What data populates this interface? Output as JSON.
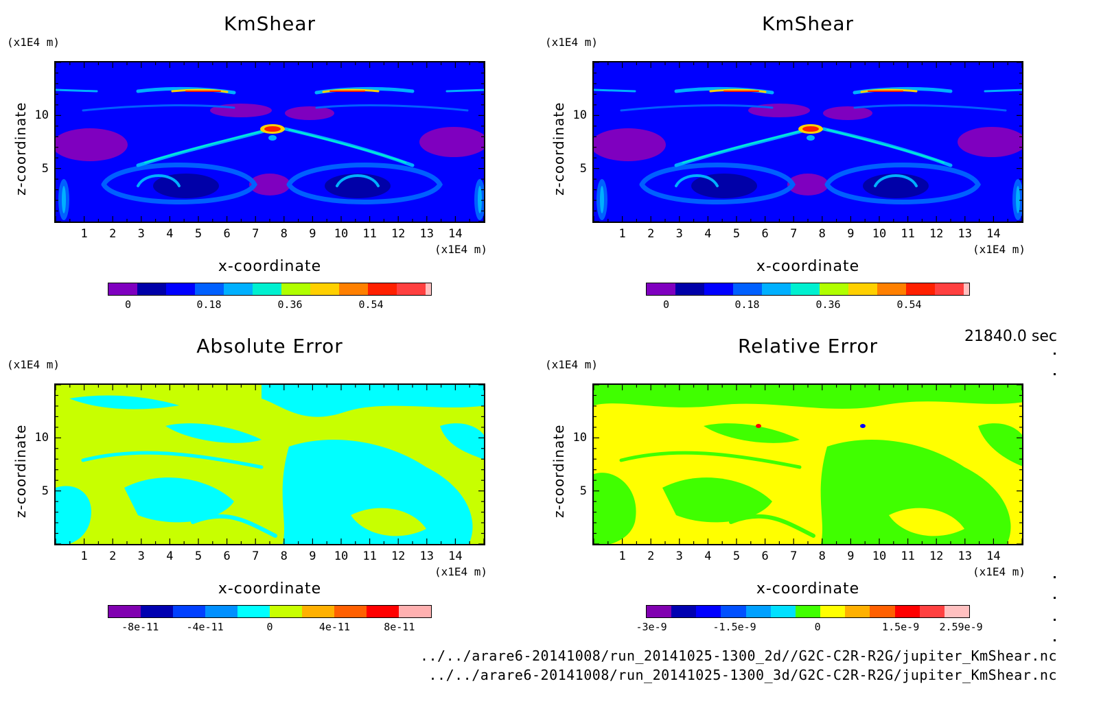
{
  "time_label": "21840.0 sec",
  "footer": {
    "line1": "../../arare6-20141008/run_20141025-1300_2d//G2C-C2R-R2G/jupiter_KmShear.nc",
    "line2": "../../arare6-20141008/run_20141025-1300_3d/G2C-C2R-R2G/jupiter_KmShear.nc"
  },
  "colors": {
    "kmshear_levels": [
      "#7f00bf",
      "#0000a8",
      "#0000ff",
      "#0060ff",
      "#00b0ff",
      "#00f0d0",
      "#b0ff00",
      "#ffd000",
      "#ff8000",
      "#ff2000",
      "#ff4040",
      "#ffc0c0"
    ],
    "abs_levels": [
      "#8000b0",
      "#0000b0",
      "#0040ff",
      "#0090ff",
      "#00ffff",
      "#c8ff00",
      "#ffb000",
      "#ff6000",
      "#ff0000",
      "#ffb0b0"
    ],
    "rel_levels": [
      "#8000b0",
      "#0000b0",
      "#0000ff",
      "#0050ff",
      "#00a0ff",
      "#00e0ff",
      "#40ff00",
      "#ffff00",
      "#ffb000",
      "#ff6000",
      "#ff0000",
      "#ff4040",
      "#ffc0c0"
    ]
  },
  "chart_data": [
    {
      "type": "heatmap",
      "title": "KmShear",
      "xlabel": "x-coordinate",
      "ylabel": "z-coordinate",
      "x_unit": "(x1E4 m)",
      "y_unit": "(x1E4 m)",
      "x_ticks": [
        "1",
        "2",
        "3",
        "4",
        "5",
        "6",
        "7",
        "8",
        "9",
        "10",
        "11",
        "12",
        "13",
        "14"
      ],
      "y_ticks": [
        "5",
        "10"
      ],
      "xlim": [
        0,
        15
      ],
      "ylim": [
        0,
        15
      ],
      "colorbar_ticks": [
        "0",
        "0.18",
        "0.36",
        "0.54"
      ],
      "colorbar_tick_values": [
        0,
        0.18,
        0.36,
        0.54
      ],
      "colorbar_range": [
        -0.045,
        0.675
      ]
    },
    {
      "type": "heatmap",
      "title": "KmShear",
      "xlabel": "x-coordinate",
      "ylabel": "z-coordinate",
      "x_unit": "(x1E4 m)",
      "y_unit": "(x1E4 m)",
      "x_ticks": [
        "1",
        "2",
        "3",
        "4",
        "5",
        "6",
        "7",
        "8",
        "9",
        "10",
        "11",
        "12",
        "13",
        "14"
      ],
      "y_ticks": [
        "5",
        "10"
      ],
      "xlim": [
        0,
        15
      ],
      "ylim": [
        0,
        15
      ],
      "colorbar_ticks": [
        "0",
        "0.18",
        "0.36",
        "0.54"
      ],
      "colorbar_tick_values": [
        0,
        0.18,
        0.36,
        0.54
      ],
      "colorbar_range": [
        -0.045,
        0.675
      ]
    },
    {
      "type": "heatmap",
      "title": "Absolute Error",
      "xlabel": "x-coordinate",
      "ylabel": "z-coordinate",
      "x_unit": "(x1E4 m)",
      "y_unit": "(x1E4 m)",
      "x_ticks": [
        "1",
        "2",
        "3",
        "4",
        "5",
        "6",
        "7",
        "8",
        "9",
        "10",
        "11",
        "12",
        "13",
        "14"
      ],
      "y_ticks": [
        "5",
        "10"
      ],
      "xlim": [
        0,
        15
      ],
      "ylim": [
        0,
        15
      ],
      "colorbar_ticks": [
        "-8e-11",
        "-4e-11",
        "0",
        "4e-11",
        "8e-11"
      ],
      "colorbar_tick_values": [
        -8e-11,
        -4e-11,
        0,
        4e-11,
        8e-11
      ],
      "colorbar_range": [
        -1e-10,
        1e-10
      ]
    },
    {
      "type": "heatmap",
      "title": "Relative Error",
      "xlabel": "x-coordinate",
      "ylabel": "z-coordinate",
      "x_unit": "(x1E4 m)",
      "y_unit": "(x1E4 m)",
      "x_ticks": [
        "1",
        "2",
        "3",
        "4",
        "5",
        "6",
        "7",
        "8",
        "9",
        "10",
        "11",
        "12",
        "13",
        "14"
      ],
      "y_ticks": [
        "5",
        "10"
      ],
      "xlim": [
        0,
        15
      ],
      "ylim": [
        0,
        15
      ],
      "colorbar_ticks": [
        "-3e-9",
        "-1.5e-9",
        "0",
        "1.5e-9",
        "2.59e-9"
      ],
      "colorbar_tick_values": [
        -3e-09,
        -1.5e-09,
        0,
        1.5e-09,
        2.59e-09
      ],
      "colorbar_range": [
        -3.1e-09,
        2.75e-09
      ]
    }
  ]
}
